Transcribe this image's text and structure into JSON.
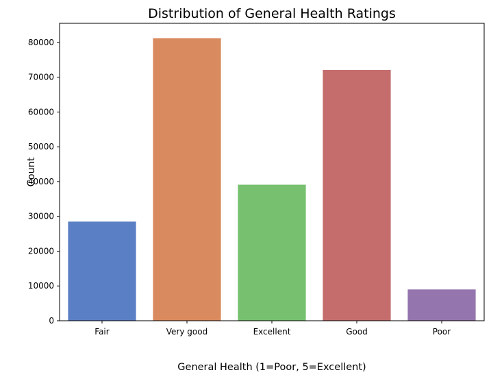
{
  "chart_data": {
    "type": "bar",
    "title": "Distribution of General Health Ratings",
    "xlabel": "General Health (1=Poor, 5=Excellent)",
    "ylabel": "Count",
    "categories": [
      "Fair",
      "Very good",
      "Excellent",
      "Good",
      "Poor"
    ],
    "values": [
      28500,
      81200,
      39100,
      72100,
      9000
    ],
    "colors": [
      "#5a7fc4",
      "#d98a5e",
      "#76c06f",
      "#c56d6d",
      "#9575ae"
    ],
    "ylim": [
      0,
      85500
    ],
    "yticks": [
      0,
      10000,
      20000,
      30000,
      40000,
      50000,
      60000,
      70000,
      80000
    ],
    "grid": false,
    "legend": "none"
  }
}
